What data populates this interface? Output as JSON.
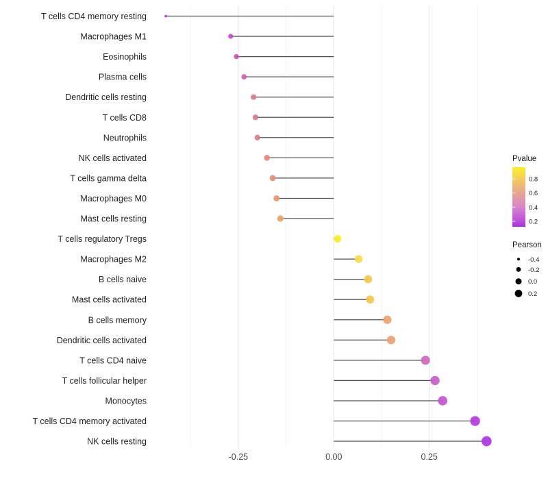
{
  "chart_data": {
    "type": "lollipop",
    "orientation": "horizontal",
    "title": "",
    "xlabel": "",
    "ylabel": "",
    "xlim": [
      -0.484,
      0.441
    ],
    "grid": "vertical major+minor, no horizontal, white background",
    "x_axis": {
      "ticks": [
        {
          "label": "-0.25",
          "value": -0.25
        },
        {
          "label": "0.00",
          "value": 0.0
        },
        {
          "label": "0.25",
          "value": 0.25
        }
      ],
      "minor_gridlines": [
        -0.375,
        -0.125,
        0.125,
        0.375
      ]
    },
    "points": [
      {
        "label": "T cells CD4 memory resting",
        "pearson": -0.44,
        "pvalue": 0.1,
        "color": "#A228E8"
      },
      {
        "label": "Macrophages M1",
        "pearson": -0.27,
        "pvalue": 0.28,
        "color": "#C74BC4"
      },
      {
        "label": "Eosinophils",
        "pearson": -0.255,
        "pvalue": 0.31,
        "color": "#C955BA"
      },
      {
        "label": "Plasma cells",
        "pearson": -0.235,
        "pvalue": 0.34,
        "color": "#CB61AF"
      },
      {
        "label": "Dendritic cells resting",
        "pearson": -0.21,
        "pvalue": 0.42,
        "color": "#D4798F"
      },
      {
        "label": "T cells CD8",
        "pearson": -0.205,
        "pvalue": 0.43,
        "color": "#D57B90"
      },
      {
        "label": "Neutrophils",
        "pearson": -0.2,
        "pvalue": 0.44,
        "color": "#D77E8B"
      },
      {
        "label": "NK cells activated",
        "pearson": -0.175,
        "pvalue": 0.49,
        "color": "#DE8A7E"
      },
      {
        "label": "T cells gamma delta",
        "pearson": -0.16,
        "pvalue": 0.52,
        "color": "#E29077"
      },
      {
        "label": "Macrophages M0",
        "pearson": -0.15,
        "pvalue": 0.55,
        "color": "#E59A70"
      },
      {
        "label": "Mast cells resting",
        "pearson": -0.14,
        "pvalue": 0.58,
        "color": "#E8A268"
      },
      {
        "label": "T cells regulatory  Tregs",
        "pearson": 0.01,
        "pvalue": 0.95,
        "color": "#F8EF27"
      },
      {
        "label": "Macrophages M2",
        "pearson": 0.065,
        "pvalue": 0.85,
        "color": "#F6DC4C"
      },
      {
        "label": "B cells naive",
        "pearson": 0.09,
        "pvalue": 0.79,
        "color": "#F3C850"
      },
      {
        "label": "Mast cells activated",
        "pearson": 0.095,
        "pvalue": 0.79,
        "color": "#F3C750"
      },
      {
        "label": "B cells memory",
        "pearson": 0.14,
        "pvalue": 0.6,
        "color": "#EBA573"
      },
      {
        "label": "Dendritic cells activated",
        "pearson": 0.15,
        "pvalue": 0.57,
        "color": "#EA9F78"
      },
      {
        "label": "T cells CD4 naive",
        "pearson": 0.24,
        "pvalue": 0.35,
        "color": "#CC69BB"
      },
      {
        "label": "T cells follicular helper",
        "pearson": 0.265,
        "pvalue": 0.31,
        "color": "#C75FC6"
      },
      {
        "label": "Monocytes",
        "pearson": 0.285,
        "pvalue": 0.28,
        "color": "#C354CE"
      },
      {
        "label": "T cells CD4 memory activated",
        "pearson": 0.37,
        "pvalue": 0.2,
        "color": "#B23BDC"
      },
      {
        "label": "NK cells resting",
        "pearson": 0.4,
        "pvalue": 0.17,
        "color": "#AC35E2"
      }
    ],
    "legend_pvalue": {
      "title": "Pvalue",
      "tick_labels": [
        "0.8",
        "0.6",
        "0.4",
        "0.2"
      ],
      "gradient_stops": [
        {
          "offset": "0%",
          "color": "#FBF126"
        },
        {
          "offset": "20%",
          "color": "#F3CC5F"
        },
        {
          "offset": "42%",
          "color": "#E9A88C"
        },
        {
          "offset": "66%",
          "color": "#D987C9"
        },
        {
          "offset": "90%",
          "color": "#BC4FDC"
        },
        {
          "offset": "100%",
          "color": "#A82FE5"
        }
      ]
    },
    "legend_pearson": {
      "title": "Pearson",
      "items": [
        {
          "label": "-0.4",
          "r": 2.0
        },
        {
          "label": "-0.2",
          "r": 3.4
        },
        {
          "label": "0.0",
          "r": 4.5
        },
        {
          "label": "0.2",
          "r": 5.4
        }
      ],
      "dot_color": "#000000"
    },
    "style_colors": {
      "segment": "#3d3d3d",
      "major_grid": "#e9e9e9",
      "minor_grid": "#f4f4f4",
      "category_text": "#1f1f1f",
      "axis_tick_text": "#454545",
      "legend_title_text": "#1a1a1a",
      "legend_label_text": "#1f1f1f"
    }
  }
}
